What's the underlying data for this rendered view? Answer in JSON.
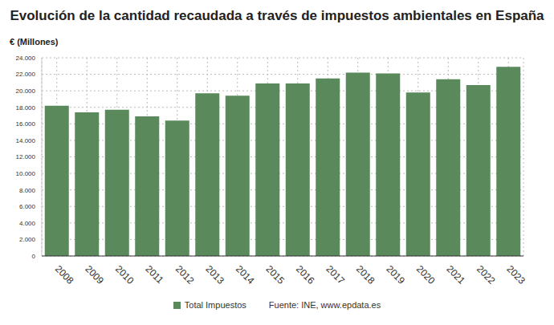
{
  "chart_data": {
    "type": "bar",
    "title": "Evolución de la cantidad recaudada a través de impuestos ambientales en España",
    "y_label": "€ (Millones)",
    "source": "Fuente: INE, www.epdata.es",
    "categories": [
      "2008",
      "2009",
      "2010",
      "2011",
      "2012",
      "2013",
      "2014",
      "2015",
      "2016",
      "2017",
      "2018",
      "2019",
      "2020",
      "2021",
      "2022",
      "2023"
    ],
    "series": [
      {
        "name": "Total Impuestos",
        "color": "#5a8a5c",
        "values": [
          18200,
          17400,
          17700,
          16900,
          16400,
          19700,
          19400,
          20900,
          20900,
          21500,
          22200,
          22100,
          19800,
          21400,
          20700,
          22900
        ]
      }
    ],
    "ylim": [
      0,
      24000
    ],
    "yticks": [
      0,
      {
        "value": 2000,
        "label": "2.000"
      },
      {
        "value": 4000,
        "label": "4.000"
      },
      {
        "value": 6000,
        "label": "6.000"
      },
      {
        "value": 8000,
        "label": "8.000"
      },
      {
        "value": 10000,
        "label": "10.000"
      },
      {
        "value": 12000,
        "label": "12.000"
      },
      {
        "value": 14000,
        "label": "14.000"
      },
      {
        "value": 16000,
        "label": "16.000"
      },
      {
        "value": 18000,
        "label": "18.000"
      },
      {
        "value": 20000,
        "label": "20.000"
      },
      {
        "value": 22000,
        "label": "22.000"
      },
      {
        "value": 24000,
        "label": "24.000"
      }
    ],
    "grid": true
  }
}
